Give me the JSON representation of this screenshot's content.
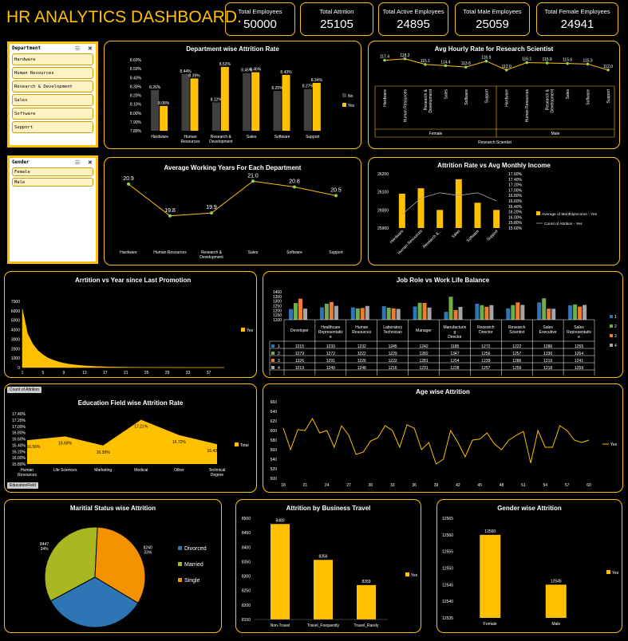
{
  "title": "HR ANALYTICS DASHBOARD.",
  "kpis": [
    {
      "label": "Total Employees",
      "value": "50000"
    },
    {
      "label": "Total Attrition",
      "value": "25105"
    },
    {
      "label": "Total Active Employees",
      "value": "24895"
    },
    {
      "label": "Total Male Employees",
      "value": "25059"
    },
    {
      "label": "Total Female Employees",
      "value": "24941"
    }
  ],
  "slicers": {
    "department": {
      "header": "Department",
      "items": [
        "Hardware",
        "Human Resources",
        "Research & Development",
        "Sales",
        "Software",
        "Support"
      ]
    },
    "gender": {
      "header": "Gender",
      "items": [
        "Female",
        "Male"
      ]
    }
  },
  "pivot_tags": {
    "count_attrition": "Count of Attrition",
    "education_field": "EducationField"
  },
  "colors": {
    "accent": "#ffc000",
    "bar_no": "#404040",
    "line": "#ffc000",
    "border": "#ffc000"
  },
  "chart_data": [
    {
      "id": "dept_attrition",
      "type": "bar",
      "title": "Department wise Attrition Rate",
      "categories": [
        "Hardware",
        "Human Resources",
        "Research & Development",
        "Sales",
        "Software",
        "Support"
      ],
      "series": [
        {
          "name": "No",
          "values": [
            8.26,
            8.44,
            8.12,
            8.45,
            8.25,
            8.27
          ]
        },
        {
          "name": "Yes",
          "values": [
            8.08,
            8.39,
            8.52,
            8.46,
            8.43,
            8.34
          ]
        }
      ],
      "data_labels": [
        [
          "8.26%",
          "8.44%",
          "8.12%",
          "8.45%",
          "8.25%",
          "8.27%"
        ],
        [
          "8.08%",
          "8.39%",
          "8.52%",
          "8.46%",
          "8.43%",
          "8.34%"
        ]
      ],
      "ylim": [
        7.8,
        8.6
      ],
      "yticks": [
        "7.80%",
        "7.90%",
        "8.00%",
        "8.10%",
        "8.20%",
        "8.30%",
        "8.40%",
        "8.50%",
        "8.60%"
      ],
      "legend": "right"
    },
    {
      "id": "hourly_rate",
      "type": "line",
      "title": "Avg Hourly Rate for Research Scientist",
      "categories": [
        "Hardware",
        "Human Resources",
        "Research & Development",
        "Sales",
        "Software",
        "Support",
        "Hardware",
        "Human Resources",
        "Research & Development",
        "Sales",
        "Software",
        "Support"
      ],
      "values": [
        117.4,
        118.2,
        115.1,
        114.4,
        113.6,
        116.9,
        112.0,
        116.1,
        115.9,
        115.6,
        115.3,
        112.0
      ],
      "labels": [
        "117.4",
        "118.2",
        "115.1",
        "114.4",
        "113.6",
        "116.9",
        "112.0",
        "116.1",
        "115.9",
        "115.6",
        "115.3",
        "112.0"
      ],
      "groups": [
        "Female",
        "Male"
      ],
      "outer_group": "Research Scientist"
    },
    {
      "id": "working_years",
      "type": "line",
      "title": "Average Working Years For Each Department",
      "categories": [
        "Hardware",
        "Human Resources",
        "Research & Development",
        "Sales",
        "Software",
        "Support"
      ],
      "values": [
        20.9,
        19.8,
        19.9,
        21.0,
        20.8,
        20.5
      ],
      "labels": [
        "20.9",
        "19.8",
        "19.9",
        "21.0",
        "20.8",
        "20.5"
      ]
    },
    {
      "id": "attr_vs_income",
      "type": "bar",
      "title": "Attrition Rate vs Avg Monthly Income",
      "categories": [
        "Hardware",
        "Human Resources",
        "Research &...",
        "Sales",
        "Software",
        "Support"
      ],
      "series": [
        {
          "name": "Average of MonthlyIncome - Yes",
          "values": [
            26090,
            26120,
            26000,
            26170,
            26040,
            26000
          ]
        },
        {
          "name": "Count of Attrition - Yes",
          "values": [
            16.1,
            16.7,
            16.9,
            16.8,
            16.9,
            16.6
          ]
        }
      ],
      "ylim": [
        25900,
        26200
      ],
      "yticks": [
        "25900",
        "26000",
        "26100",
        "26200"
      ],
      "y2ticks": [
        "15.60%",
        "15.80%",
        "16.00%",
        "16.20%",
        "16.40%",
        "16.60%",
        "16.80%",
        "17.00%",
        "17.20%",
        "17.40%",
        "17.60%"
      ],
      "y2lim": [
        15.6,
        17.6
      ],
      "legend": "right"
    },
    {
      "id": "promotion",
      "type": "area",
      "title": "Arrtition vs Year since Last Promotion",
      "x": [
        1,
        2,
        3,
        4,
        5,
        6,
        7,
        8,
        9,
        10,
        11,
        12,
        13,
        14,
        15,
        16,
        17,
        18,
        19,
        20,
        21,
        22,
        23,
        24,
        25,
        26,
        27,
        28,
        29,
        30,
        31,
        32,
        33,
        34,
        35,
        36,
        37,
        38,
        39,
        40
      ],
      "values": [
        6200,
        3600,
        2500,
        1800,
        1350,
        1000,
        780,
        600,
        460,
        360,
        290,
        230,
        180,
        150,
        120,
        100,
        80,
        65,
        55,
        45,
        38,
        32,
        27,
        22,
        18,
        15,
        12,
        10,
        8,
        7,
        6,
        5,
        4,
        3,
        3,
        2,
        2,
        1,
        1,
        1
      ],
      "xticks": [
        "1",
        "5",
        "9",
        "13",
        "17",
        "21",
        "25",
        "29",
        "33",
        "37"
      ],
      "ylim": [
        0,
        7000
      ],
      "yticks": [
        "0",
        "1000",
        "2000",
        "3000",
        "4000",
        "5000",
        "6000",
        "7000"
      ],
      "series_name": "Yes"
    },
    {
      "id": "jobrole_wlb",
      "type": "bar",
      "title": "Job Role vs Work Life Balance",
      "categories": [
        "Developer",
        "Healthcare Representative",
        "Human Resources",
        "Laboratory Technician",
        "Manager",
        "Manufacturing Director",
        "Research Director",
        "Research Scientist",
        "Sales Executive",
        "Sales Representative"
      ],
      "category_labels": [
        "Developer",
        "Healthcare Representativ e",
        "Human Resources",
        "Laboratory Technician",
        "Manager",
        "Manufacturin g Director",
        "Research Director",
        "Research Scientist",
        "Sales Executive",
        "Sales Representativ e"
      ],
      "series": [
        {
          "name": "1",
          "values": [
            1215,
            1233,
            1232,
            1245,
            1242,
            1185,
            1272,
            1222,
            1286,
            1255
          ]
        },
        {
          "name": "2",
          "values": [
            1279,
            1272,
            1222,
            1229,
            1282,
            1347,
            1256,
            1257,
            1330,
            1264
          ]
        },
        {
          "name": "3",
          "values": [
            1326,
            1291,
            1226,
            1222,
            1281,
            1204,
            1239,
            1286,
            1219,
            1241
          ]
        },
        {
          "name": "4",
          "values": [
            1219,
            1249,
            1248,
            1216,
            1231,
            1238,
            1257,
            1259,
            1218,
            1259
          ]
        }
      ],
      "ylim": [
        1100,
        1400
      ],
      "yticks": [
        "1100",
        "1150",
        "1200",
        "1250",
        "1300",
        "1350",
        "1400"
      ],
      "legend": "right"
    },
    {
      "id": "education",
      "type": "area",
      "title": "Education Field wise Attrition Rate",
      "categories": [
        "Human Resources",
        "Life Sciences",
        "Marketing",
        "Medical",
        "Other",
        "Technical Degree"
      ],
      "category_labels": [
        [
          "Human",
          "Resources"
        ],
        [
          "Life Sciences"
        ],
        [
          "Marketing"
        ],
        [
          "Medical"
        ],
        [
          "Other"
        ],
        [
          "Technical",
          "Degree"
        ]
      ],
      "values": [
        16.56,
        16.68,
        16.39,
        17.21,
        16.72,
        16.43
      ],
      "labels": [
        "16.56%",
        "16.68%",
        "16.39%",
        "17.21%",
        "16.72%",
        "16.43%"
      ],
      "ylim": [
        15.8,
        17.4
      ],
      "yticks": [
        "15.80%",
        "16.00%",
        "16.20%",
        "16.40%",
        "16.60%",
        "16.80%",
        "17.00%",
        "17.20%",
        "17.40%"
      ],
      "series_name": "Total"
    },
    {
      "id": "age",
      "type": "line",
      "title": "Age wise Attrition",
      "x": [
        18,
        19,
        20,
        21,
        22,
        23,
        24,
        25,
        26,
        27,
        28,
        29,
        30,
        31,
        32,
        33,
        34,
        35,
        36,
        37,
        38,
        39,
        40,
        41,
        42,
        43,
        44,
        45,
        46,
        47,
        48,
        49,
        50,
        51,
        52,
        53,
        54,
        55,
        56,
        57,
        58,
        59,
        60
      ],
      "values": [
        605,
        560,
        602,
        600,
        625,
        595,
        600,
        565,
        610,
        590,
        550,
        555,
        578,
        585,
        610,
        600,
        565,
        612,
        605,
        560,
        575,
        530,
        540,
        600,
        575,
        545,
        580,
        582,
        595,
        572,
        560,
        580,
        590,
        598,
        532,
        600,
        565,
        565,
        610,
        600,
        580,
        575,
        580
      ],
      "xticks": [
        "18",
        "21",
        "24",
        "27",
        "30",
        "33",
        "36",
        "39",
        "42",
        "45",
        "48",
        "51",
        "54",
        "57",
        "60"
      ],
      "ylim": [
        500,
        660
      ],
      "yticks": [
        "500",
        "520",
        "540",
        "560",
        "580",
        "600",
        "620",
        "640",
        "660"
      ],
      "series_name": "Yes"
    },
    {
      "id": "marital",
      "type": "pie",
      "title": "Maritial Status wise Attrition",
      "categories": [
        "Divorced",
        "Married",
        "Single"
      ],
      "values": [
        8418,
        8447,
        8240
      ],
      "labels": [
        [
          "8418",
          "33%"
        ],
        [
          "8447",
          "34%"
        ],
        [
          "8240",
          "33%"
        ]
      ],
      "legend": "right"
    },
    {
      "id": "travel",
      "type": "bar",
      "title": "Attrition by Business Travel",
      "categories": [
        "Non-Travel",
        "Travel_Frequently",
        "Travel_Rarely"
      ],
      "values": [
        8480,
        8356,
        8269
      ],
      "labels": [
        "8480",
        "8356",
        "8269"
      ],
      "ylim": [
        8150,
        8500
      ],
      "yticks": [
        "8150",
        "8200",
        "8250",
        "8300",
        "8350",
        "8400",
        "8450",
        "8500"
      ],
      "series_name": "Yes"
    },
    {
      "id": "gender",
      "type": "bar",
      "title": "Gender wise Attrition",
      "categories": [
        "Female",
        "Male"
      ],
      "values": [
        12560,
        12545
      ],
      "labels": [
        "12560",
        "12545"
      ],
      "ylim": [
        12535,
        12565
      ],
      "yticks": [
        "12535",
        "12540",
        "12545",
        "12550",
        "12555",
        "12560",
        "12565"
      ],
      "series_name": "Yes"
    }
  ]
}
